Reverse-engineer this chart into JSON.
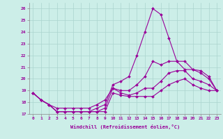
{
  "xlabel": "Windchill (Refroidissement éolien,°C)",
  "background_color": "#cceee8",
  "grid_color": "#aad4ce",
  "line_color": "#990099",
  "hours": [
    0,
    1,
    2,
    3,
    4,
    5,
    6,
    7,
    8,
    9,
    10,
    11,
    12,
    13,
    14,
    15,
    16,
    17,
    18,
    19,
    20,
    21,
    22,
    23
  ],
  "line1": [
    18.8,
    18.2,
    17.8,
    17.2,
    17.2,
    17.2,
    17.2,
    17.2,
    17.2,
    17.2,
    18.8,
    18.6,
    18.5,
    18.5,
    18.5,
    18.5,
    19.0,
    19.5,
    19.8,
    20.0,
    19.5,
    19.2,
    19.0,
    19.0
  ],
  "line2": [
    18.8,
    18.2,
    17.8,
    17.5,
    17.5,
    17.5,
    17.5,
    17.5,
    17.8,
    18.2,
    19.2,
    18.8,
    18.6,
    18.8,
    19.2,
    19.2,
    19.8,
    20.5,
    20.7,
    20.7,
    20.0,
    19.8,
    19.5,
    19.0
  ],
  "line3": [
    18.8,
    18.2,
    17.8,
    17.2,
    17.2,
    17.2,
    17.2,
    17.2,
    17.2,
    17.5,
    19.2,
    19.0,
    19.0,
    19.5,
    20.2,
    21.5,
    21.2,
    21.5,
    21.5,
    21.5,
    20.8,
    20.7,
    20.2,
    19.0
  ],
  "line4": [
    18.8,
    18.2,
    17.8,
    17.2,
    17.2,
    17.2,
    17.2,
    17.2,
    17.5,
    17.8,
    19.5,
    19.8,
    20.2,
    22.0,
    24.0,
    26.0,
    25.5,
    23.5,
    21.5,
    20.8,
    20.8,
    20.5,
    20.0,
    19.0
  ],
  "ylim": [
    17.0,
    26.5
  ],
  "yticks": [
    17,
    18,
    19,
    20,
    21,
    22,
    23,
    24,
    25,
    26
  ],
  "xlim": [
    -0.5,
    23.5
  ],
  "markersize": 2.0,
  "linewidth": 0.8
}
